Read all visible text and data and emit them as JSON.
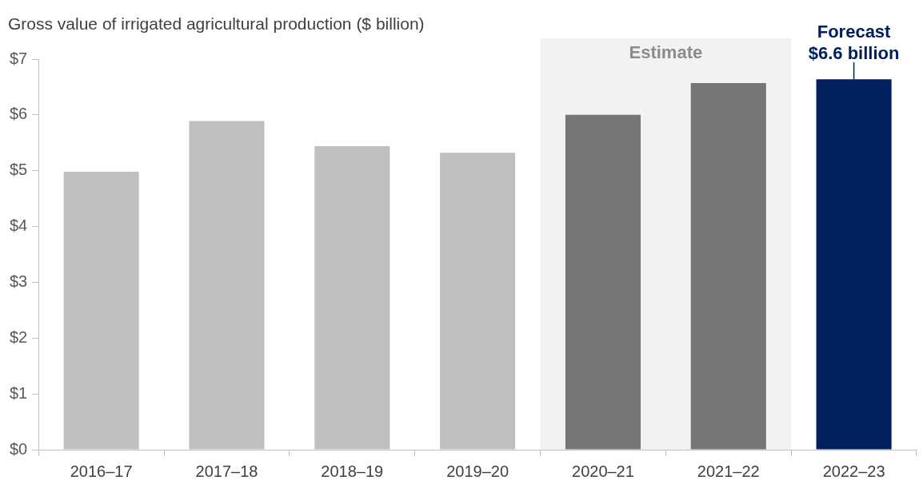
{
  "chart_data": {
    "type": "bar",
    "ylabel": "Gross value of irrigated agricultural production ($ billion)",
    "categories": [
      "2016–17",
      "2017–18",
      "2018–19",
      "2019–20",
      "2020–21",
      "2021–22",
      "2022–23"
    ],
    "values": [
      4.98,
      5.89,
      5.44,
      5.32,
      6.0,
      6.57,
      6.64
    ],
    "colors": [
      "#bfbfbf",
      "#bfbfbf",
      "#bfbfbf",
      "#bfbfbf",
      "#767676",
      "#767676",
      "#002060"
    ],
    "ylim": [
      0,
      7
    ],
    "yticks": [
      {
        "value": 0,
        "label": "$0"
      },
      {
        "value": 1,
        "label": "$1"
      },
      {
        "value": 2,
        "label": "$2"
      },
      {
        "value": 3,
        "label": "$3"
      },
      {
        "value": 4,
        "label": "$4"
      },
      {
        "value": 5,
        "label": "$5"
      },
      {
        "value": 6,
        "label": "$6"
      },
      {
        "value": 7,
        "label": "$7"
      }
    ],
    "bands": [
      {
        "axis": "x",
        "from": "2020–21",
        "to": "2021–22",
        "label": "Estimate",
        "color": "#f2f2f2"
      }
    ],
    "annotations": [
      {
        "text": "Forecast $6.6 billion",
        "x": "2022–23",
        "y": 6.64
      }
    ],
    "grid": false,
    "legend": false
  }
}
